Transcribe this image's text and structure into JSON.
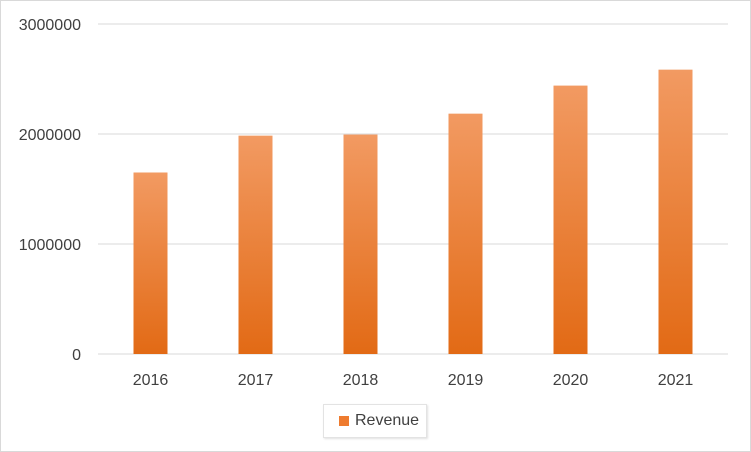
{
  "chart_data": {
    "type": "bar",
    "title": "",
    "xlabel": "",
    "ylabel": "",
    "categories": [
      "2016",
      "2017",
      "2018",
      "2019",
      "2020",
      "2021"
    ],
    "series": [
      {
        "name": "Revenue",
        "values": [
          1650000,
          1985000,
          1995000,
          2185000,
          2440000,
          2585000
        ]
      }
    ],
    "ylim": [
      0,
      3000000
    ],
    "yticks": [
      0,
      1000000,
      2000000,
      3000000
    ],
    "ytick_labels": [
      "0",
      "1000000",
      "2000000",
      "3000000"
    ],
    "grid": true,
    "legend_position": "bottom"
  },
  "colors": {
    "bar_top": "#f29a62",
    "bar_bottom": "#e26a15",
    "swatch": "#ee7b2f",
    "gridline": "#d9d9d9"
  }
}
